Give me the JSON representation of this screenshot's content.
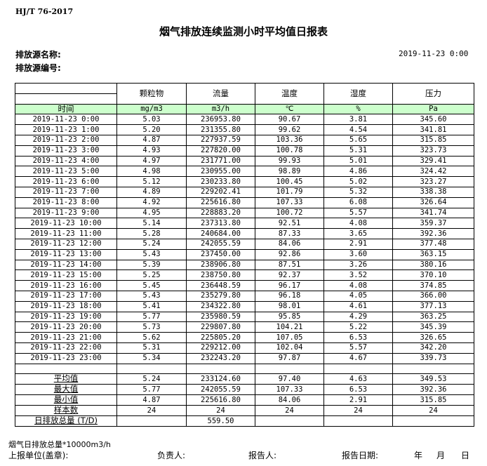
{
  "standard": "HJ/T  76-2017",
  "title": "烟气排放连续监测小时平均值日报表",
  "source_name_label": "排放源名称:",
  "source_no_label": "排放源编号:",
  "report_datetime": "2019-11-23 0:00",
  "table": {
    "headers": [
      "颗粒物",
      "流量",
      "温度",
      "湿度",
      "压力"
    ],
    "time_label": "时间",
    "units": [
      "mg/m3",
      "m3/h",
      "℃",
      "%",
      "Pa"
    ],
    "rows": [
      [
        "2019-11-23 0:00",
        "5.03",
        "236953.80",
        "90.67",
        "3.81",
        "345.60"
      ],
      [
        "2019-11-23 1:00",
        "5.20",
        "231355.80",
        "99.62",
        "4.54",
        "341.81"
      ],
      [
        "2019-11-23 2:00",
        "4.87",
        "227937.59",
        "103.36",
        "5.65",
        "315.85"
      ],
      [
        "2019-11-23 3:00",
        "4.93",
        "227820.00",
        "100.78",
        "5.31",
        "323.73"
      ],
      [
        "2019-11-23 4:00",
        "4.97",
        "231771.00",
        "99.93",
        "5.01",
        "329.41"
      ],
      [
        "2019-11-23 5:00",
        "4.98",
        "230955.00",
        "98.89",
        "4.86",
        "324.42"
      ],
      [
        "2019-11-23 6:00",
        "5.12",
        "230233.80",
        "100.45",
        "5.02",
        "323.27"
      ],
      [
        "2019-11-23 7:00",
        "4.89",
        "229202.41",
        "101.79",
        "5.32",
        "338.38"
      ],
      [
        "2019-11-23 8:00",
        "4.92",
        "225616.80",
        "107.33",
        "6.08",
        "326.64"
      ],
      [
        "2019-11-23 9:00",
        "4.95",
        "228883.20",
        "100.72",
        "5.57",
        "341.74"
      ],
      [
        "2019-11-23 10:00",
        "5.14",
        "237313.80",
        "92.51",
        "4.08",
        "359.37"
      ],
      [
        "2019-11-23 11:00",
        "5.28",
        "240684.00",
        "87.33",
        "3.65",
        "392.36"
      ],
      [
        "2019-11-23 12:00",
        "5.24",
        "242055.59",
        "84.06",
        "2.91",
        "377.48"
      ],
      [
        "2019-11-23 13:00",
        "5.43",
        "237450.00",
        "92.86",
        "3.60",
        "363.15"
      ],
      [
        "2019-11-23 14:00",
        "5.39",
        "238906.80",
        "87.51",
        "3.26",
        "380.16"
      ],
      [
        "2019-11-23 15:00",
        "5.25",
        "238750.80",
        "92.37",
        "3.52",
        "370.10"
      ],
      [
        "2019-11-23 16:00",
        "5.45",
        "236448.59",
        "96.17",
        "4.08",
        "374.85"
      ],
      [
        "2019-11-23 17:00",
        "5.43",
        "235279.80",
        "96.18",
        "4.05",
        "366.00"
      ],
      [
        "2019-11-23 18:00",
        "5.41",
        "234322.80",
        "98.01",
        "4.61",
        "377.13"
      ],
      [
        "2019-11-23 19:00",
        "5.77",
        "235980.59",
        "95.85",
        "4.29",
        "363.25"
      ],
      [
        "2019-11-23 20:00",
        "5.73",
        "229807.80",
        "104.21",
        "5.22",
        "345.39"
      ],
      [
        "2019-11-23 21:00",
        "5.62",
        "225805.20",
        "107.05",
        "6.53",
        "326.65"
      ],
      [
        "2019-11-23 22:00",
        "5.31",
        "229212.00",
        "102.04",
        "5.57",
        "342.20"
      ],
      [
        "2019-11-23 23:00",
        "5.34",
        "232243.20",
        "97.87",
        "4.67",
        "339.73"
      ]
    ],
    "stats": [
      [
        "平均值",
        "5.24",
        "233124.60",
        "97.40",
        "4.63",
        "349.53"
      ],
      [
        "最大值",
        "5.77",
        "242055.59",
        "107.33",
        "6.53",
        "392.36"
      ],
      [
        "最小值",
        "4.87",
        "225616.80",
        "84.06",
        "2.91",
        "315.85"
      ],
      [
        "样本数",
        "24",
        "24",
        "24",
        "24",
        "24"
      ],
      [
        "日排放总量 (T/D)",
        "",
        "559.50",
        "",
        "",
        ""
      ]
    ]
  },
  "note": "烟气日排放总量*10000m3/h",
  "footer": {
    "unit": "上报单位(盖章):",
    "responsible": "负责人:",
    "reporter": "报告人:",
    "report_date": "报告日期:",
    "year": "年",
    "month": "月",
    "day": "日"
  }
}
